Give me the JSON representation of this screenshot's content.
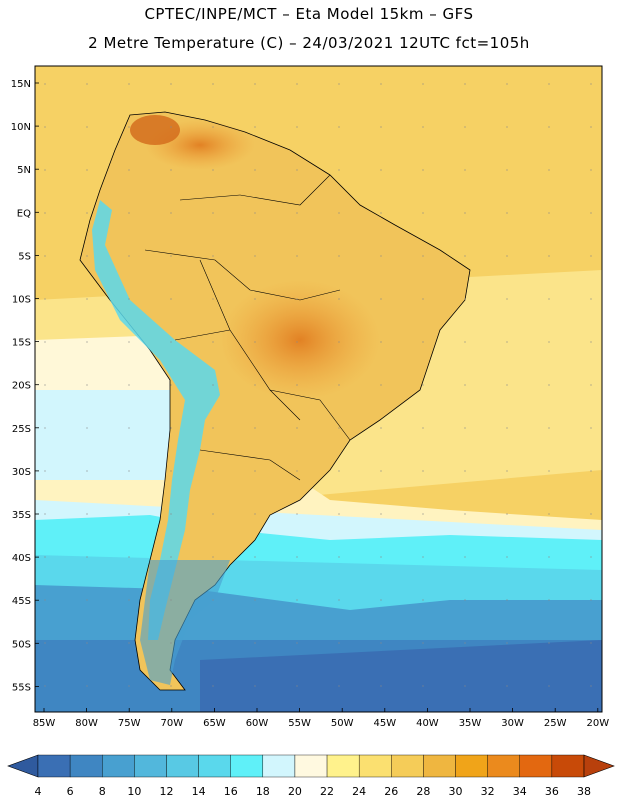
{
  "header": {
    "line1": "CPTEC/INPE/MCT –  Eta Model 15km – GFS",
    "line2": "2 Metre Temperature (C) – 24/03/2021 12UTC fct=105h"
  },
  "map": {
    "variable": "2 Metre Temperature",
    "units": "C",
    "region": "South America",
    "lat_labels": [
      "15N",
      "10N",
      "5N",
      "EQ",
      "5S",
      "10S",
      "15S",
      "20S",
      "25S",
      "30S",
      "35S",
      "40S",
      "45S",
      "50S",
      "55S"
    ],
    "lon_labels": [
      "85W",
      "80W",
      "75W",
      "70W",
      "65W",
      "60W",
      "55W",
      "50W",
      "45W",
      "40W",
      "35W",
      "30W",
      "25W",
      "20W"
    ]
  },
  "colorbar": {
    "labels": [
      "4",
      "6",
      "8",
      "10",
      "12",
      "14",
      "16",
      "18",
      "20",
      "22",
      "24",
      "26",
      "28",
      "30",
      "32",
      "34",
      "36",
      "38"
    ],
    "colors": [
      "#3a6fb4",
      "#3f86c2",
      "#48a0d0",
      "#52b7dc",
      "#58c9e4",
      "#5ad8ec",
      "#5ff0f8",
      "#d2f6fd",
      "#fff9e0",
      "#fff28c",
      "#fbe070",
      "#f5cc58",
      "#efb640",
      "#f0a419",
      "#eb8a1d",
      "#e36810",
      "#c84a08"
    ],
    "low_color": "#2f5a9e",
    "high_color": "#b8400c"
  }
}
